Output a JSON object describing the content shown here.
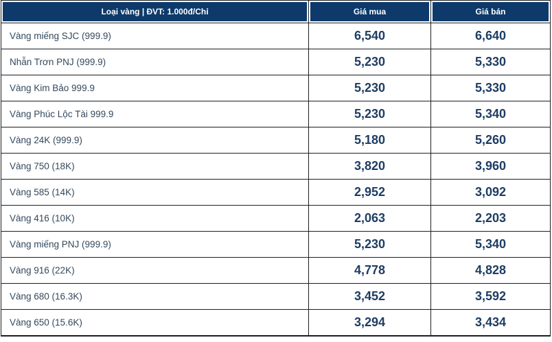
{
  "colors": {
    "header_bg": "#0d3a6b",
    "header_text": "#ffffff",
    "border": "#1a1d21",
    "label_text": "#33485c",
    "price_text": "#1e3d63",
    "row_bg": "#ffffff"
  },
  "table": {
    "header": {
      "type_label": "Loại vàng | ĐVT: 1.000đ/Chỉ",
      "buy_label": "Giá mua",
      "sell_label": "Giá bán"
    },
    "rows": [
      {
        "type": "Vàng miếng SJC (999.9)",
        "buy": "6,540",
        "sell": "6,640"
      },
      {
        "type": "Nhẫn Trơn PNJ (999.9)",
        "buy": "5,230",
        "sell": "5,330"
      },
      {
        "type": "Vàng Kim Bảo 999.9",
        "buy": "5,230",
        "sell": "5,330"
      },
      {
        "type": "Vàng Phúc Lộc Tài 999.9",
        "buy": "5,230",
        "sell": "5,340"
      },
      {
        "type": "Vàng 24K (999.9)",
        "buy": "5,180",
        "sell": "5,260"
      },
      {
        "type": "Vàng 750 (18K)",
        "buy": "3,820",
        "sell": "3,960"
      },
      {
        "type": "Vàng 585 (14K)",
        "buy": "2,952",
        "sell": "3,092"
      },
      {
        "type": "Vàng 416 (10K)",
        "buy": "2,063",
        "sell": "2,203"
      },
      {
        "type": "Vàng miếng PNJ (999.9)",
        "buy": "5,230",
        "sell": "5,340"
      },
      {
        "type": "Vàng 916 (22K)",
        "buy": "4,778",
        "sell": "4,828"
      },
      {
        "type": "Vàng 680 (16.3K)",
        "buy": "3,452",
        "sell": "3,592"
      },
      {
        "type": "Vàng 650 (15.6K)",
        "buy": "3,294",
        "sell": "3,434"
      }
    ]
  },
  "chart_data": {
    "type": "table",
    "title": "Loại vàng | ĐVT: 1.000đ/Chỉ",
    "unit": "1.000đ/Chỉ",
    "columns": [
      "Loại vàng",
      "Giá mua",
      "Giá bán"
    ],
    "categories": [
      "Vàng miếng SJC (999.9)",
      "Nhẫn Trơn PNJ (999.9)",
      "Vàng Kim Bảo 999.9",
      "Vàng Phúc Lộc Tài 999.9",
      "Vàng 24K (999.9)",
      "Vàng 750 (18K)",
      "Vàng 585 (14K)",
      "Vàng 416 (10K)",
      "Vàng miếng PNJ (999.9)",
      "Vàng 916 (22K)",
      "Vàng 680 (16.3K)",
      "Vàng 650 (15.6K)"
    ],
    "series": [
      {
        "name": "Giá mua",
        "values": [
          6540,
          5230,
          5230,
          5230,
          5180,
          3820,
          2952,
          2063,
          5230,
          4778,
          3452,
          3294
        ]
      },
      {
        "name": "Giá bán",
        "values": [
          6640,
          5330,
          5330,
          5340,
          5260,
          3960,
          3092,
          2203,
          5340,
          4828,
          3592,
          3434
        ]
      }
    ]
  }
}
